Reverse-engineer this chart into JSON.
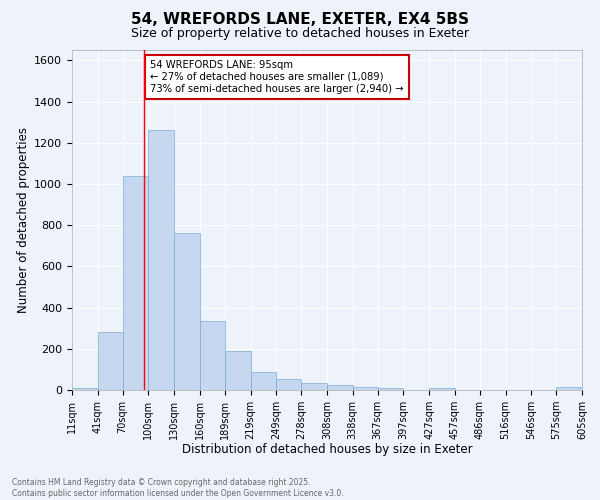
{
  "title1": "54, WREFORDS LANE, EXETER, EX4 5BS",
  "title2": "Size of property relative to detached houses in Exeter",
  "xlabel": "Distribution of detached houses by size in Exeter",
  "ylabel": "Number of detached properties",
  "bar_color": "#c5d8f0",
  "bar_edge_color": "#7bafd4",
  "bg_color": "#eef2fa",
  "grid_color": "#ffffff",
  "vline_x": 95,
  "vline_color": "red",
  "annotation_text": "54 WREFORDS LANE: 95sqm\n← 27% of detached houses are smaller (1,089)\n73% of semi-detached houses are larger (2,940) →",
  "annotation_box_color": "white",
  "annotation_box_edge": "#cc0000",
  "footer1": "Contains HM Land Registry data © Crown copyright and database right 2025.",
  "footer2": "Contains public sector information licensed under the Open Government Licence v3.0.",
  "bin_edges": [
    11,
    41,
    70,
    100,
    130,
    160,
    189,
    219,
    249,
    278,
    308,
    338,
    367,
    397,
    427,
    457,
    486,
    516,
    546,
    575,
    605
  ],
  "bin_labels": [
    "11sqm",
    "41sqm",
    "70sqm",
    "100sqm",
    "130sqm",
    "160sqm",
    "189sqm",
    "219sqm",
    "249sqm",
    "278sqm",
    "308sqm",
    "338sqm",
    "367sqm",
    "397sqm",
    "427sqm",
    "457sqm",
    "486sqm",
    "516sqm",
    "546sqm",
    "575sqm",
    "605sqm"
  ],
  "counts": [
    10,
    280,
    1040,
    1260,
    760,
    335,
    190,
    85,
    55,
    35,
    25,
    15,
    10,
    0,
    10,
    0,
    0,
    0,
    0,
    15
  ],
  "ylim": [
    0,
    1650
  ],
  "yticks": [
    0,
    200,
    400,
    600,
    800,
    1000,
    1200,
    1400,
    1600
  ]
}
